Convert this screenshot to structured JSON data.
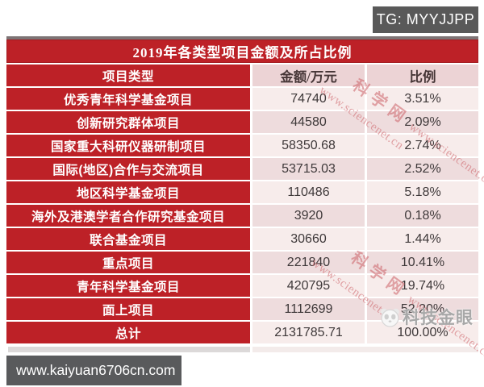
{
  "badges": {
    "tg": "TG: MYYJJPP",
    "url": "www.kaiyuan6706cn.com"
  },
  "watermark": {
    "site": "www.sciencenet.cn",
    "name": "科学网"
  },
  "logo": {
    "label": "科技金眼"
  },
  "chart_data": {
    "type": "table",
    "title": "2019年各类型项目金额及所占比例",
    "headers": [
      "项目类型",
      "金额/万元",
      "比例"
    ],
    "rows": [
      {
        "type": "优秀青年科学基金项目",
        "amount": "74740",
        "ratio": "3.51%"
      },
      {
        "type": "创新研究群体项目",
        "amount": "44580",
        "ratio": "2.09%"
      },
      {
        "type": "国家重大科研仪器研制项目",
        "amount": "58350.68",
        "ratio": "2.74%"
      },
      {
        "type": "国际(地区)合作与交流项目",
        "amount": "53715.03",
        "ratio": "2.52%"
      },
      {
        "type": "地区科学基金项目",
        "amount": "110486",
        "ratio": "5.18%"
      },
      {
        "type": "海外及港澳学者合作研究基金项目",
        "amount": "3920",
        "ratio": "0.18%"
      },
      {
        "type": "联合基金项目",
        "amount": "30660",
        "ratio": "1.44%"
      },
      {
        "type": "重点项目",
        "amount": "221840",
        "ratio": "10.41%"
      },
      {
        "type": "青年科学基金项目",
        "amount": "420795",
        "ratio": "19.74%"
      },
      {
        "type": "面上项目",
        "amount": "1112699",
        "ratio": "52.20%"
      },
      {
        "type": "总计",
        "amount": "2131785.71",
        "ratio": "100.00%"
      }
    ],
    "colors": {
      "accent_red": "#bd2127",
      "header_pink": "#ecd3d5",
      "row_pink_light": "#f7eceb",
      "row_pink_dark": "#eedcdd",
      "watermark": "#cd6167"
    }
  }
}
